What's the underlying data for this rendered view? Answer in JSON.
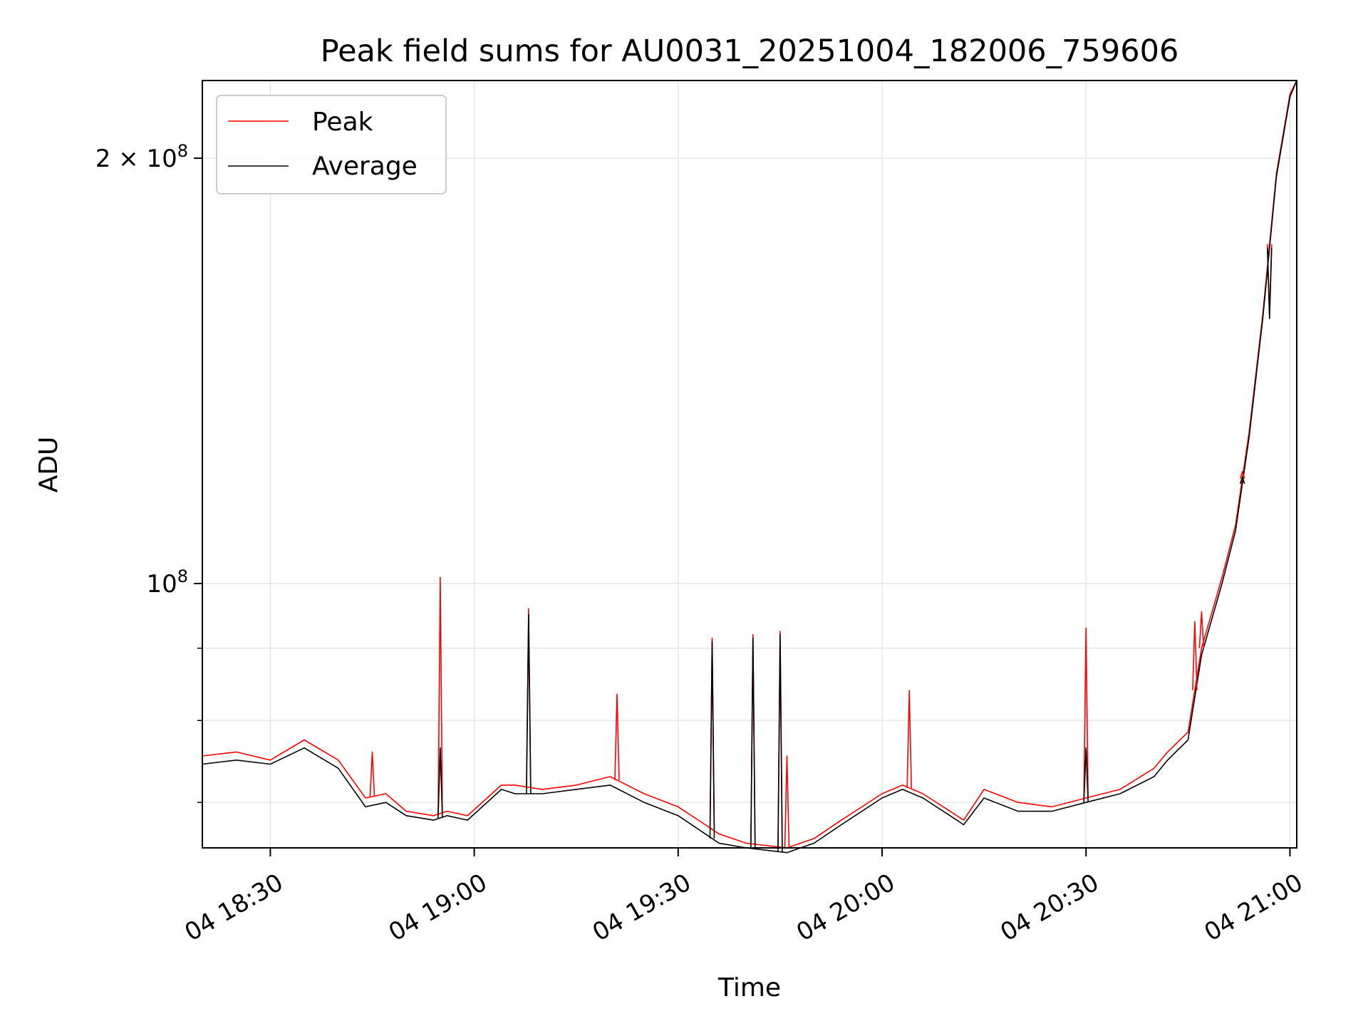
{
  "chart_data": {
    "type": "line",
    "title": "Peak field sums for AU0031_20251004_182006_759606",
    "xlabel": "Time",
    "ylabel": "ADU",
    "y_scale": "log",
    "x_unit": "time of day on day 04",
    "xlim": [
      "18:20",
      "21:01"
    ],
    "ylim": [
      65000000,
      227000000
    ],
    "x_ticks": [
      {
        "value": "18:30",
        "label": "04 18:30"
      },
      {
        "value": "19:00",
        "label": "04 19:00"
      },
      {
        "value": "19:30",
        "label": "04 19:30"
      },
      {
        "value": "20:00",
        "label": "04 20:00"
      },
      {
        "value": "20:30",
        "label": "04 20:30"
      },
      {
        "value": "21:00",
        "label": "04 21:00"
      }
    ],
    "y_major_ticks": [
      {
        "value": 100000000,
        "base": "10",
        "exp": "8",
        "coef": ""
      },
      {
        "value": 200000000,
        "base": "10",
        "exp": "8",
        "coef": "2"
      }
    ],
    "y_minor_ticks": [
      70000000,
      80000000,
      90000000
    ],
    "grid": true,
    "legend_position": "upper-left",
    "series": [
      {
        "name": "Peak",
        "color": "#ff0000",
        "x": [
          "18:20",
          "18:25",
          "18:30",
          "18:35",
          "18:40",
          "18:44",
          "18:47",
          "18:50",
          "18:54",
          "18:56",
          "18:59",
          "19:04",
          "19:06",
          "19:10",
          "19:15",
          "19:20",
          "19:25",
          "19:30",
          "19:34",
          "19:36",
          "19:40",
          "19:46",
          "19:48",
          "19:50",
          "19:54",
          "20:00",
          "20:03",
          "20:06",
          "20:10",
          "20:12",
          "20:15",
          "20:20",
          "20:25",
          "20:30",
          "20:35",
          "20:40",
          "20:42",
          "20:45",
          "20:47",
          "20:50",
          "20:52",
          "20:54",
          "20:56",
          "20:58",
          "21:00",
          "21:01"
        ],
        "y": [
          75500000,
          76000000,
          75000000,
          77500000,
          75000000,
          70500000,
          71000000,
          69000000,
          68500000,
          69000000,
          68500000,
          72000000,
          72000000,
          71500000,
          72000000,
          73000000,
          71000000,
          69500000,
          67500000,
          66500000,
          65500000,
          65000000,
          65500000,
          66000000,
          68000000,
          71000000,
          72000000,
          71000000,
          69000000,
          68000000,
          71500000,
          70000000,
          69500000,
          70500000,
          71500000,
          74000000,
          76000000,
          78500000,
          90000000,
          101000000,
          110000000,
          128000000,
          155000000,
          195000000,
          222000000,
          227000000
        ]
      },
      {
        "name": "Average",
        "color": "#000000",
        "x": [
          "18:20",
          "18:25",
          "18:30",
          "18:35",
          "18:40",
          "18:44",
          "18:47",
          "18:50",
          "18:54",
          "18:56",
          "18:59",
          "19:04",
          "19:06",
          "19:10",
          "19:15",
          "19:20",
          "19:25",
          "19:30",
          "19:34",
          "19:36",
          "19:40",
          "19:46",
          "19:48",
          "19:50",
          "19:54",
          "20:00",
          "20:03",
          "20:06",
          "20:10",
          "20:12",
          "20:15",
          "20:20",
          "20:25",
          "20:30",
          "20:35",
          "20:40",
          "20:42",
          "20:45",
          "20:47",
          "20:50",
          "20:52",
          "20:54",
          "20:56",
          "20:58",
          "21:00",
          "21:01"
        ],
        "y": [
          74500000,
          75000000,
          74500000,
          76500000,
          74000000,
          69500000,
          70000000,
          68500000,
          68000000,
          68500000,
          68000000,
          71500000,
          71000000,
          71000000,
          71500000,
          72000000,
          70000000,
          68500000,
          66500000,
          65500000,
          65000000,
          64500000,
          65000000,
          65500000,
          67500000,
          70500000,
          71500000,
          70500000,
          68500000,
          67500000,
          70500000,
          69000000,
          69000000,
          70000000,
          71000000,
          73000000,
          75000000,
          77500000,
          89000000,
          100000000,
          109000000,
          127000000,
          154000000,
          194000000,
          221000000,
          227000000
        ]
      }
    ],
    "spikes": [
      {
        "series": "Peak",
        "x": "18:45",
        "y": 76000000
      },
      {
        "series": "Peak",
        "x": "18:55",
        "y": 101000000
      },
      {
        "series": "Average",
        "x": "18:55",
        "y": 76500000
      },
      {
        "series": "Peak",
        "x": "19:08",
        "y": 96000000
      },
      {
        "series": "Average",
        "x": "19:08",
        "y": 95000000
      },
      {
        "series": "Peak",
        "x": "19:21",
        "y": 83500000
      },
      {
        "series": "Peak",
        "x": "19:35",
        "y": 91500000
      },
      {
        "series": "Average",
        "x": "19:35",
        "y": 91000000
      },
      {
        "series": "Peak",
        "x": "19:41",
        "y": 92000000
      },
      {
        "series": "Average",
        "x": "19:41",
        "y": 91500000
      },
      {
        "series": "Peak",
        "x": "19:45",
        "y": 92500000
      },
      {
        "series": "Average",
        "x": "19:45",
        "y": 92000000
      },
      {
        "series": "Peak",
        "x": "19:46",
        "y": 75500000
      },
      {
        "series": "Peak",
        "x": "20:04",
        "y": 84000000
      },
      {
        "series": "Peak",
        "x": "20:30",
        "y": 93000000
      },
      {
        "series": "Average",
        "x": "20:30",
        "y": 76500000
      },
      {
        "series": "Peak",
        "x": "20:46",
        "y": 94000000
      },
      {
        "series": "Peak",
        "x": "20:47",
        "y": 95500000
      },
      {
        "series": "Peak",
        "x": "20:53",
        "y": 120000000
      },
      {
        "series": "Average",
        "x": "20:53",
        "y": 119000000
      },
      {
        "series": "Peak",
        "x": "20:57",
        "y": 155000000
      },
      {
        "series": "Average",
        "x": "20:57",
        "y": 154000000
      }
    ]
  }
}
